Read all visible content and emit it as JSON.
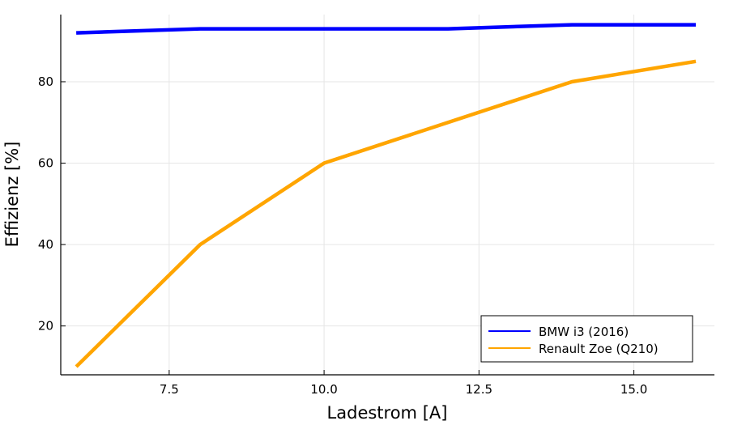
{
  "chart_data": {
    "type": "line",
    "xlabel": "Ladestrom [A]",
    "ylabel": "Effizienz [%]",
    "xlim": [
      5.75,
      16.3
    ],
    "ylim": [
      8,
      96.5
    ],
    "x_ticks": [
      7.5,
      10.0,
      12.5,
      15.0
    ],
    "x_tick_labels": [
      "7.5",
      "10.0",
      "12.5",
      "15.0"
    ],
    "y_ticks": [
      20,
      40,
      60,
      80
    ],
    "y_tick_labels": [
      "20",
      "40",
      "60",
      "80"
    ],
    "grid": true,
    "legend_position": "bottom-right",
    "series": [
      {
        "name": "BMW i3 (2016)",
        "color": "#0000ff",
        "x": [
          6,
          8,
          10,
          12,
          14,
          16
        ],
        "y": [
          92,
          93,
          93,
          93,
          94,
          94
        ]
      },
      {
        "name": "Renault Zoe (Q210)",
        "color": "#ffa500",
        "x": [
          6,
          8,
          10,
          12,
          14,
          16
        ],
        "y": [
          10,
          40,
          60,
          70,
          80,
          85
        ]
      }
    ]
  }
}
